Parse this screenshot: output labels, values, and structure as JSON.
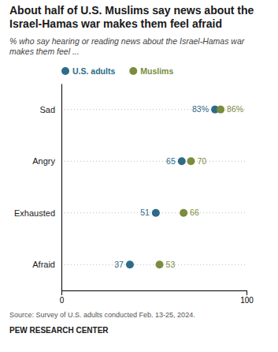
{
  "chart_data": {
    "type": "dot",
    "title": "About half of U.S. Muslims say news about the Israel-Hamas war makes them feel afraid",
    "subtitle": "% who say hearing or reading news about the Israel-Hamas war makes them feel ...",
    "categories": [
      "Sad",
      "Angry",
      "Exhausted",
      "Afraid"
    ],
    "series": [
      {
        "name": "U.S. adults",
        "color": "#2e6b8a",
        "values": [
          83,
          65,
          51,
          37
        ],
        "value_labels": [
          "83%",
          "65",
          "51",
          "37"
        ]
      },
      {
        "name": "Muslims",
        "color": "#7a8c3e",
        "values": [
          86,
          70,
          66,
          53
        ],
        "value_labels": [
          "86%",
          "70",
          "66",
          "53"
        ]
      }
    ],
    "xlim": [
      0,
      100
    ],
    "xticks": [
      0,
      100
    ],
    "grid": true,
    "data_labels": true,
    "source": "Source: Survey of U.S. adults conducted Feb. 13-25, 2024.",
    "footer": "PEW RESEARCH CENTER"
  }
}
